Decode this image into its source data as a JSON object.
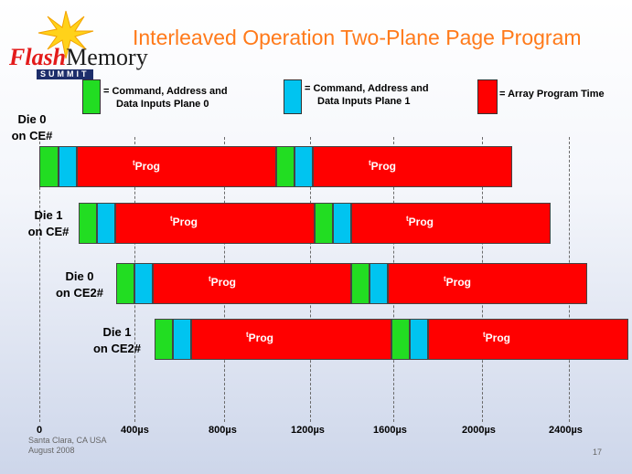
{
  "title": "Interleaved Operation Two-Plane Page Program",
  "logo": {
    "word1": "Flash",
    "word2": "Memory",
    "word3": "SUMMIT"
  },
  "legend": [
    {
      "line1": "= Command, Address and",
      "line2": "Data Inputs Plane 0",
      "color": "#22dd22"
    },
    {
      "line1": "= Command, Address and",
      "line2": "Data Inputs Plane 1",
      "color": "#00c4f0"
    },
    {
      "line1": "= Array Program Time",
      "color": "#ff0000"
    }
  ],
  "rows": [
    {
      "label1": "Die 0",
      "label2": "on CE#"
    },
    {
      "label1": "Die 1",
      "label2": "on CE#"
    },
    {
      "label1": "Die 0",
      "label2": "on CE2#"
    },
    {
      "label1": "Die 1",
      "label2": "on CE2#"
    }
  ],
  "prog_label": {
    "sup": "t",
    "main": "Prog"
  },
  "ticks": [
    "0",
    "400µs",
    "800µs",
    "1200µs",
    "1600µs",
    "2000µs",
    "2400µs"
  ],
  "footer": {
    "location": "Santa Clara, CA  USA",
    "date": "August 2008",
    "page": "17"
  }
}
